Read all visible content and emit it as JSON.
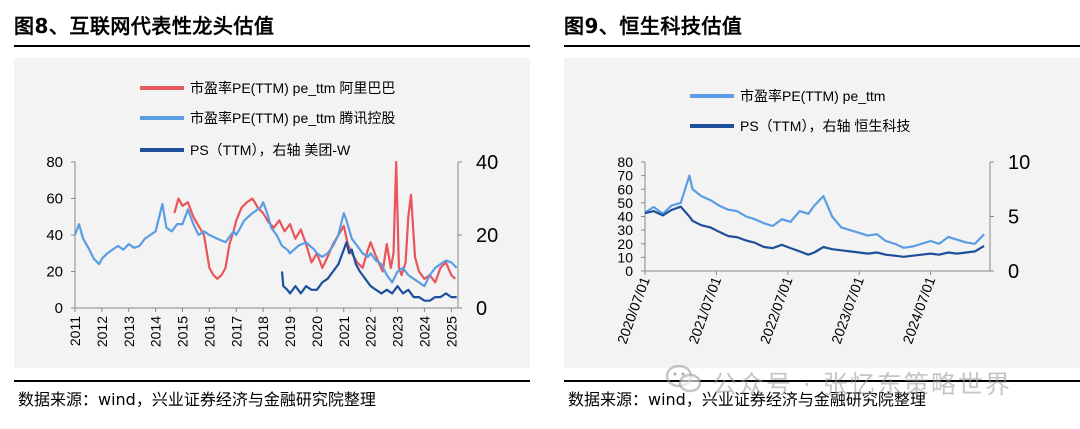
{
  "left": {
    "title": "图8、互联网代表性龙头估值",
    "source": "数据来源：wind，兴业证券经济与金融研究院整理"
  },
  "right": {
    "title": "图9、恒生科技估值",
    "source": "数据来源：wind，兴业证券经济与金融研究院整理"
  },
  "watermark": {
    "text": "公众号 · 张忆东策略世界",
    "icon": "wechat-icon"
  },
  "chart_data": [
    {
      "type": "line",
      "legend_position": "top",
      "grid": false,
      "x_ticks": [
        "2011",
        "2012",
        "2013",
        "2014",
        "2015",
        "2016",
        "2017",
        "2018",
        "2019",
        "2020",
        "2021",
        "2022",
        "2023",
        "2024",
        "2025"
      ],
      "xlim": [
        2011.0,
        2025.25
      ],
      "y_left": {
        "lim": [
          0,
          80
        ],
        "ticks": [
          "0",
          "20",
          "40",
          "60",
          "80"
        ]
      },
      "y_right": {
        "lim": [
          0,
          40
        ],
        "ticks": [
          "0",
          "20",
          "40"
        ]
      },
      "series": [
        {
          "name": "市盈率PE(TTM) pe_ttm 阿里巴巴",
          "axis": "left",
          "color": "#e8555a",
          "x": [
            2014.7,
            2014.85,
            2015.0,
            2015.2,
            2015.4,
            2015.6,
            2015.8,
            2016.0,
            2016.15,
            2016.3,
            2016.45,
            2016.6,
            2016.75,
            2016.9,
            2017.0,
            2017.2,
            2017.4,
            2017.6,
            2017.8,
            2018.0,
            2018.2,
            2018.4,
            2018.6,
            2018.8,
            2019.0,
            2019.2,
            2019.4,
            2019.6,
            2019.8,
            2020.0,
            2020.2,
            2020.4,
            2020.6,
            2020.8,
            2021.0,
            2021.15,
            2021.3,
            2021.5,
            2021.7,
            2021.9,
            2022.0,
            2022.15,
            2022.3,
            2022.45,
            2022.6,
            2022.75,
            2022.85,
            2022.95,
            2023.05,
            2023.15,
            2023.3,
            2023.4,
            2023.5,
            2023.65,
            2023.8,
            2024.0,
            2024.2,
            2024.4,
            2024.6,
            2024.8,
            2025.0,
            2025.15
          ],
          "y": [
            52,
            60,
            56,
            58,
            50,
            45,
            40,
            22,
            18,
            16,
            18,
            22,
            35,
            42,
            48,
            55,
            58,
            60,
            55,
            52,
            47,
            44,
            48,
            42,
            46,
            38,
            43,
            35,
            25,
            30,
            22,
            28,
            35,
            40,
            45,
            35,
            30,
            25,
            22,
            32,
            36,
            30,
            25,
            20,
            35,
            22,
            30,
            80,
            22,
            18,
            25,
            50,
            62,
            28,
            20,
            16,
            18,
            14,
            22,
            25,
            18,
            16
          ]
        },
        {
          "name": "市盈率PE(TTM) pe_ttm 腾讯控股",
          "axis": "left",
          "color": "#5b9de3",
          "x": [
            2011.0,
            2011.15,
            2011.3,
            2011.5,
            2011.7,
            2011.9,
            2012.0,
            2012.2,
            2012.4,
            2012.6,
            2012.8,
            2013.0,
            2013.2,
            2013.4,
            2013.6,
            2013.8,
            2014.0,
            2014.1,
            2014.25,
            2014.4,
            2014.6,
            2014.8,
            2015.0,
            2015.2,
            2015.4,
            2015.6,
            2015.8,
            2016.0,
            2016.3,
            2016.6,
            2016.9,
            2017.0,
            2017.3,
            2017.6,
            2017.9,
            2018.0,
            2018.15,
            2018.3,
            2018.5,
            2018.7,
            2018.9,
            2019.0,
            2019.3,
            2019.6,
            2019.9,
            2020.0,
            2020.2,
            2020.4,
            2020.6,
            2020.8,
            2021.0,
            2021.1,
            2021.3,
            2021.5,
            2021.7,
            2021.9,
            2022.0,
            2022.2,
            2022.4,
            2022.6,
            2022.8,
            2023.0,
            2023.2,
            2023.4,
            2023.6,
            2023.8,
            2024.0,
            2024.2,
            2024.4,
            2024.6,
            2024.8,
            2025.0,
            2025.2
          ],
          "y": [
            40,
            46,
            38,
            33,
            27,
            24,
            27,
            30,
            32,
            34,
            32,
            35,
            33,
            34,
            38,
            40,
            42,
            48,
            57,
            44,
            42,
            46,
            46,
            54,
            46,
            40,
            42,
            40,
            38,
            36,
            42,
            40,
            48,
            52,
            55,
            58,
            52,
            44,
            40,
            34,
            32,
            30,
            34,
            36,
            32,
            30,
            28,
            30,
            34,
            40,
            52,
            48,
            38,
            34,
            30,
            28,
            30,
            26,
            24,
            18,
            14,
            20,
            22,
            18,
            16,
            14,
            12,
            18,
            22,
            24,
            26,
            25,
            22
          ]
        },
        {
          "name": "PS（TTM），右轴 美团-W",
          "axis": "right",
          "color": "#1e4f9a",
          "x": [
            2018.7,
            2018.75,
            2018.9,
            2019.0,
            2019.2,
            2019.4,
            2019.6,
            2019.8,
            2020.0,
            2020.2,
            2020.4,
            2020.6,
            2020.8,
            2021.0,
            2021.1,
            2021.2,
            2021.3,
            2021.45,
            2021.6,
            2021.8,
            2022.0,
            2022.2,
            2022.4,
            2022.6,
            2022.8,
            2023.0,
            2023.2,
            2023.4,
            2023.6,
            2023.8,
            2024.0,
            2024.2,
            2024.4,
            2024.6,
            2024.8,
            2025.0,
            2025.2
          ],
          "y": [
            10,
            6,
            5,
            4,
            6,
            4,
            6,
            5,
            5,
            7,
            8,
            10,
            12,
            16,
            18,
            15,
            16,
            12,
            10,
            8,
            6,
            5,
            4,
            5,
            4,
            6,
            4,
            5,
            3,
            3,
            2,
            2,
            3,
            3,
            4,
            3,
            3
          ]
        }
      ]
    },
    {
      "type": "line",
      "legend_position": "top",
      "grid": false,
      "x_ticks": [
        "2020/07/01",
        "2021/07/01",
        "2022/07/01",
        "2023/07/01",
        "2024/07/01"
      ],
      "xlim": [
        "2020/07/01",
        "2025/05/01"
      ],
      "y_left": {
        "lim": [
          0,
          80
        ],
        "ticks": [
          "0",
          "10",
          "20",
          "30",
          "40",
          "50",
          "60",
          "70",
          "80"
        ]
      },
      "y_right": {
        "lim": [
          0,
          10
        ],
        "ticks": [
          "0",
          "5",
          "10"
        ]
      },
      "series": [
        {
          "name": "市盈率PE(TTM) pe_ttm",
          "axis": "left",
          "color": "#5b9de3",
          "x": [
            "2020/07/01",
            "2020/08/15",
            "2020/10/01",
            "2020/11/15",
            "2021/01/01",
            "2021/02/15",
            "2021/03/01",
            "2021/04/15",
            "2021/06/01",
            "2021/07/15",
            "2021/09/01",
            "2021/10/15",
            "2021/12/01",
            "2022/01/15",
            "2022/03/01",
            "2022/04/15",
            "2022/06/01",
            "2022/07/15",
            "2022/09/01",
            "2022/10/15",
            "2022/11/15",
            "2023/01/01",
            "2023/02/15",
            "2023/04/01",
            "2023/05/15",
            "2023/07/01",
            "2023/08/15",
            "2023/10/01",
            "2023/11/15",
            "2024/01/01",
            "2024/02/15",
            "2024/04/01",
            "2024/05/15",
            "2024/07/01",
            "2024/08/15",
            "2024/10/01",
            "2024/11/15",
            "2025/01/01",
            "2025/02/15",
            "2025/04/01"
          ],
          "y": [
            43,
            47,
            42,
            48,
            50,
            70,
            60,
            55,
            52,
            48,
            45,
            44,
            40,
            38,
            35,
            33,
            38,
            36,
            44,
            42,
            48,
            55,
            40,
            32,
            30,
            28,
            26,
            27,
            22,
            20,
            17,
            18,
            20,
            22,
            20,
            25,
            23,
            21,
            20,
            27
          ]
        },
        {
          "name": "PS（TTM），右轴 恒生科技",
          "axis": "right",
          "color": "#1e4f9a",
          "x": [
            "2020/07/01",
            "2020/08/15",
            "2020/10/01",
            "2020/11/15",
            "2021/01/01",
            "2021/02/15",
            "2021/03/01",
            "2021/04/15",
            "2021/06/01",
            "2021/07/15",
            "2021/09/01",
            "2021/10/15",
            "2021/12/01",
            "2022/01/15",
            "2022/03/01",
            "2022/04/15",
            "2022/06/01",
            "2022/07/15",
            "2022/09/01",
            "2022/10/15",
            "2022/11/15",
            "2023/01/01",
            "2023/02/15",
            "2023/04/01",
            "2023/05/15",
            "2023/07/01",
            "2023/08/15",
            "2023/10/01",
            "2023/11/15",
            "2024/01/01",
            "2024/02/15",
            "2024/04/01",
            "2024/05/15",
            "2024/07/01",
            "2024/08/15",
            "2024/10/01",
            "2024/11/15",
            "2025/01/01",
            "2025/02/15",
            "2025/04/01"
          ],
          "y": [
            5.3,
            5.5,
            5.1,
            5.6,
            5.9,
            5.0,
            4.6,
            4.2,
            4.0,
            3.6,
            3.2,
            3.1,
            2.8,
            2.6,
            2.2,
            2.1,
            2.4,
            2.1,
            1.8,
            1.5,
            1.7,
            2.2,
            2.0,
            1.9,
            1.8,
            1.7,
            1.6,
            1.7,
            1.5,
            1.4,
            1.3,
            1.4,
            1.5,
            1.6,
            1.5,
            1.7,
            1.6,
            1.7,
            1.8,
            2.3
          ]
        }
      ]
    }
  ]
}
